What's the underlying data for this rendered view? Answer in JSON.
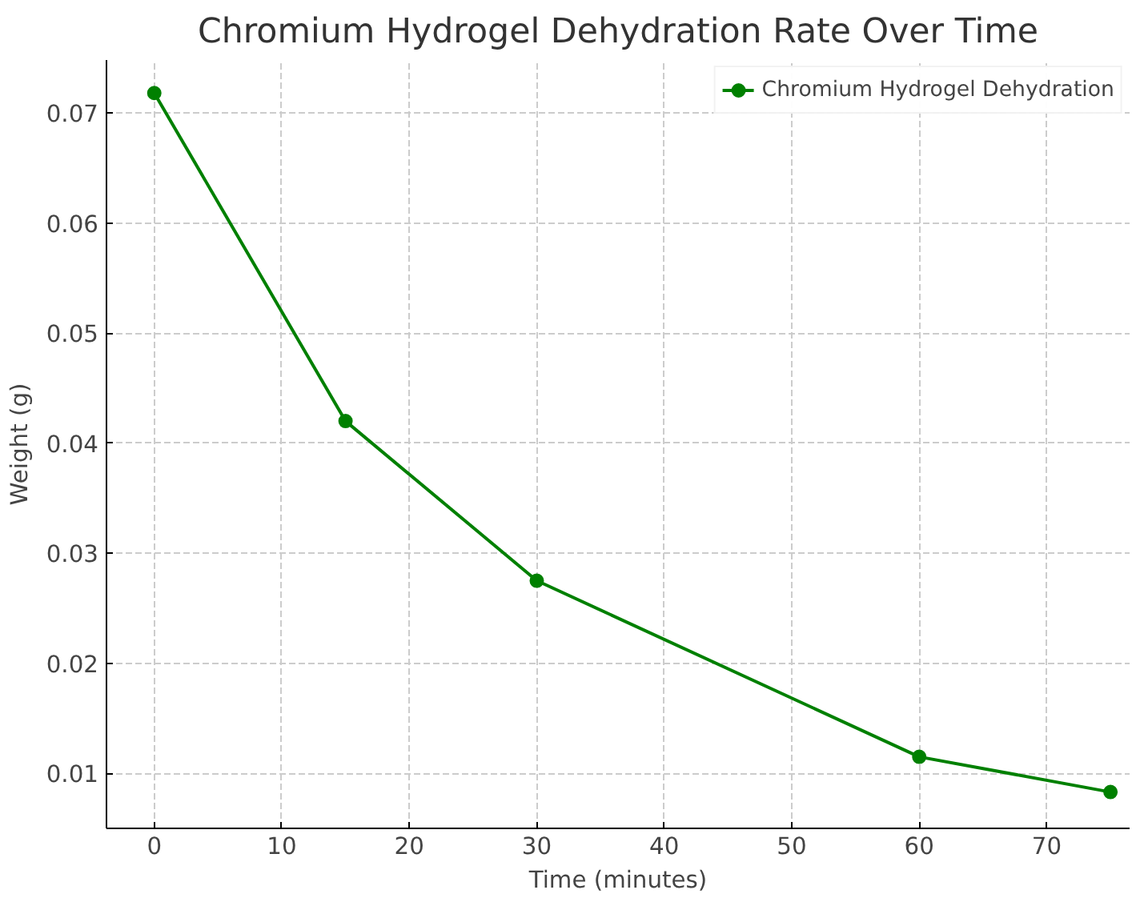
{
  "chart_data": {
    "type": "line",
    "title": "Chromium Hydrogel Dehydration Rate Over Time",
    "xlabel": "Time (minutes)",
    "ylabel": "Weight (g)",
    "x": [
      0,
      15,
      30,
      60,
      75
    ],
    "series": [
      {
        "name": "Chromium Hydrogel Dehydration",
        "color": "#008000",
        "values": [
          0.0718,
          0.042,
          0.0275,
          0.0115,
          0.0083
        ]
      }
    ],
    "xlim": [
      -3.75,
      76.5
    ],
    "ylim": [
      0.005,
      0.0748
    ],
    "xticks": [
      0,
      10,
      20,
      30,
      40,
      50,
      60,
      70
    ],
    "yticks": [
      0.01,
      0.02,
      0.03,
      0.04,
      0.05,
      0.06,
      0.07
    ],
    "grid": true,
    "legend": "top right",
    "marker": "circle",
    "line_style": "solid"
  }
}
